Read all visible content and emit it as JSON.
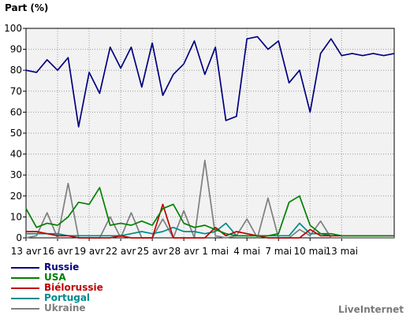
{
  "brand": "LiveInternet",
  "chart_data": {
    "type": "line",
    "title": "",
    "ylabel": "Part (%)",
    "xlabel": "",
    "ylim": [
      0,
      100
    ],
    "yticks": [
      0,
      10,
      20,
      30,
      40,
      50,
      60,
      70,
      80,
      90,
      100
    ],
    "grid": true,
    "legend_position": "bottom-left",
    "x": [
      1,
      2,
      3,
      4,
      5,
      6,
      7,
      8,
      9,
      10,
      11,
      12,
      13,
      14,
      15,
      16,
      17,
      18,
      19,
      20,
      21,
      22,
      23,
      24,
      25,
      26,
      27,
      28,
      29,
      30,
      31,
      32,
      33,
      34,
      35,
      36
    ],
    "xticks": [
      {
        "x": 1,
        "label": "13 avr"
      },
      {
        "x": 4,
        "label": "16 avr"
      },
      {
        "x": 7,
        "label": "19 avr"
      },
      {
        "x": 10,
        "label": "22 avr"
      },
      {
        "x": 13,
        "label": "25 avr"
      },
      {
        "x": 16,
        "label": "28 avr"
      },
      {
        "x": 19,
        "label": "1 mai"
      },
      {
        "x": 22,
        "label": "4 mai"
      },
      {
        "x": 25,
        "label": "7 mai"
      },
      {
        "x": 28,
        "label": "10 mai"
      },
      {
        "x": 31,
        "label": "13 mai"
      }
    ],
    "series": [
      {
        "name": "Russie",
        "color": "#00007f",
        "values": [
          80,
          79,
          85,
          80,
          86,
          53,
          79,
          69,
          91,
          81,
          91,
          72,
          93,
          68,
          78,
          83,
          94,
          78,
          91,
          56,
          58,
          95,
          96,
          90,
          94,
          74,
          80,
          60,
          88,
          95,
          87,
          88,
          87,
          88,
          87,
          88
        ]
      },
      {
        "name": "USA",
        "color": "#008000",
        "values": [
          14,
          5,
          7,
          6,
          10,
          17,
          16,
          24,
          6,
          7,
          6,
          8,
          6,
          14,
          16,
          7,
          5,
          6,
          4,
          2,
          1,
          1,
          1,
          1,
          2,
          17,
          20,
          6,
          2,
          2,
          1,
          1,
          1,
          1,
          1,
          1
        ]
      },
      {
        "name": "Biélorussie",
        "color": "#c00000",
        "values": [
          3,
          3,
          2,
          1,
          1,
          0,
          0,
          0,
          0,
          1,
          0,
          0,
          0,
          16,
          0,
          0,
          0,
          0,
          5,
          1,
          3,
          2,
          1,
          0,
          0,
          0,
          0,
          4,
          1,
          1,
          1,
          1,
          1,
          1,
          1,
          1
        ]
      },
      {
        "name": "Portugal",
        "color": "#008b8b",
        "values": [
          2,
          2,
          2,
          2,
          1,
          1,
          1,
          1,
          1,
          1,
          2,
          3,
          2,
          3,
          5,
          3,
          3,
          2,
          3,
          7,
          1,
          1,
          1,
          1,
          1,
          1,
          7,
          2,
          2,
          1,
          1,
          1,
          1,
          1,
          1,
          1
        ]
      },
      {
        "name": "Ukraine",
        "color": "#7f7f7f",
        "values": [
          0,
          1,
          12,
          0,
          26,
          0,
          0,
          0,
          10,
          0,
          12,
          0,
          0,
          9,
          0,
          13,
          0,
          37,
          1,
          0,
          1,
          9,
          0,
          19,
          0,
          0,
          4,
          1,
          8,
          0,
          0,
          0,
          0,
          0,
          0,
          0
        ]
      }
    ]
  }
}
